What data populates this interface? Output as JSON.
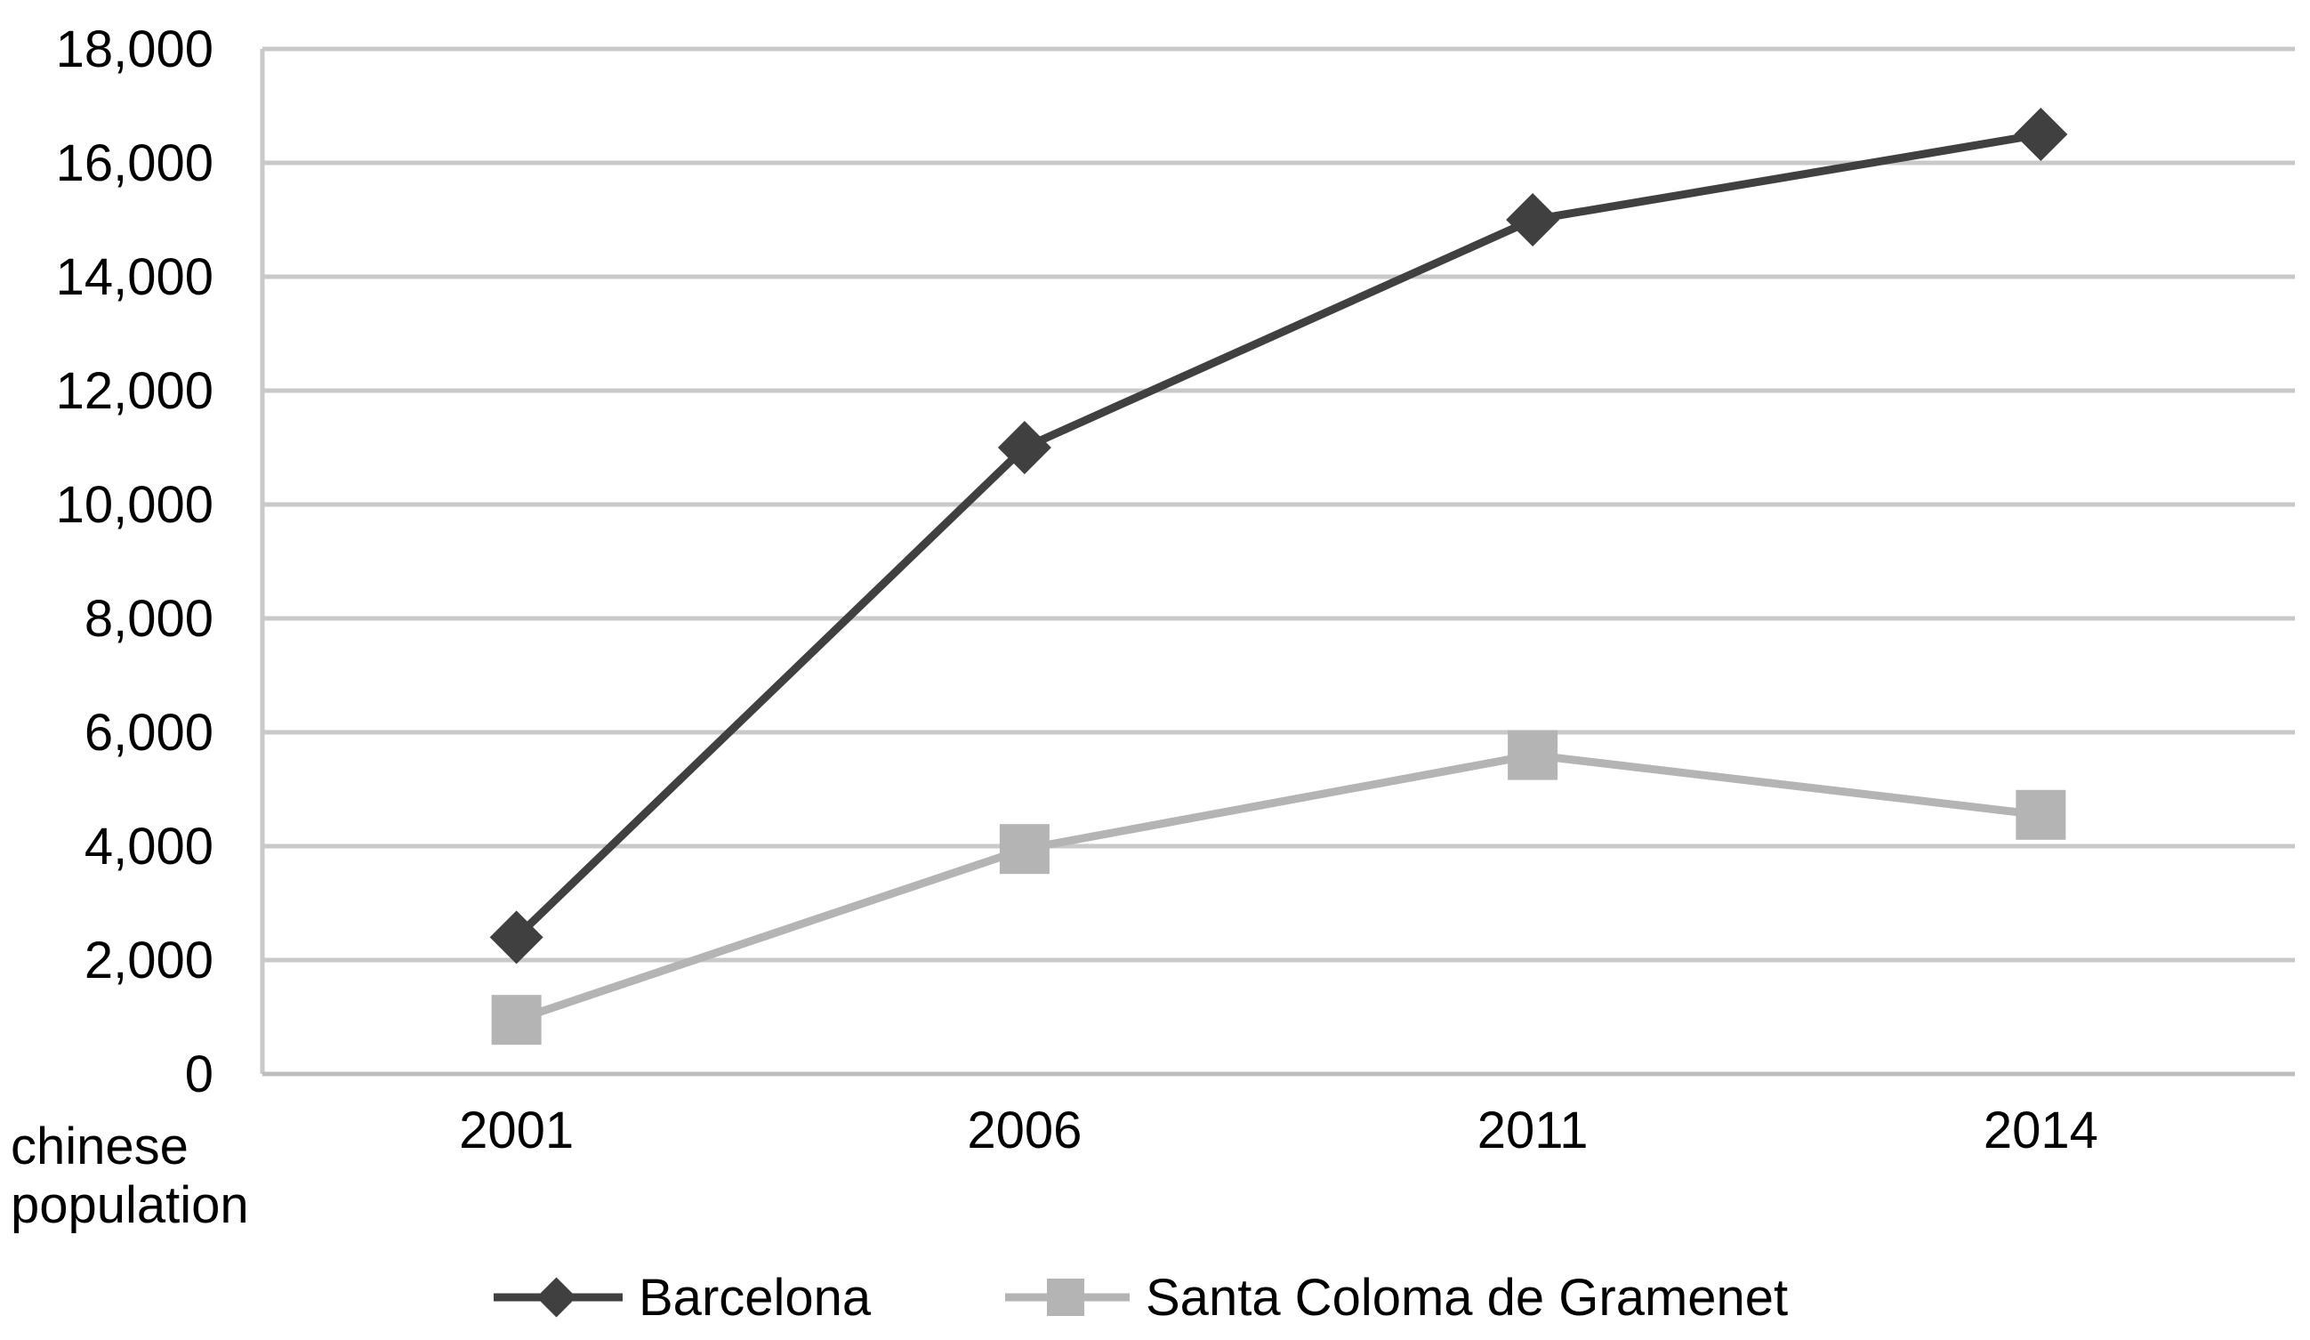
{
  "chart_data": {
    "type": "line",
    "categories": [
      "2001",
      "2006",
      "2011",
      "2014"
    ],
    "series": [
      {
        "name": "Barcelona",
        "values": [
          2400,
          11000,
          15000,
          16500
        ],
        "color": "#404040",
        "marker": "diamond"
      },
      {
        "name": "Santa Coloma de Gramenet",
        "values": [
          950,
          3950,
          5600,
          4550
        ],
        "color": "#b4b4b4",
        "marker": "square"
      }
    ],
    "xlabel": "chinese population",
    "ylabel": "",
    "ylim": [
      0,
      18000
    ],
    "yticks": [
      0,
      2000,
      4000,
      6000,
      8000,
      10000,
      12000,
      14000,
      16000,
      18000
    ],
    "ytick_labels": [
      "0",
      "2,000",
      "4,000",
      "6,000",
      "8,000",
      "10,000",
      "12,000",
      "14,000",
      "16,000",
      "18,000"
    ],
    "grid": true,
    "legend_position": "bottom"
  }
}
